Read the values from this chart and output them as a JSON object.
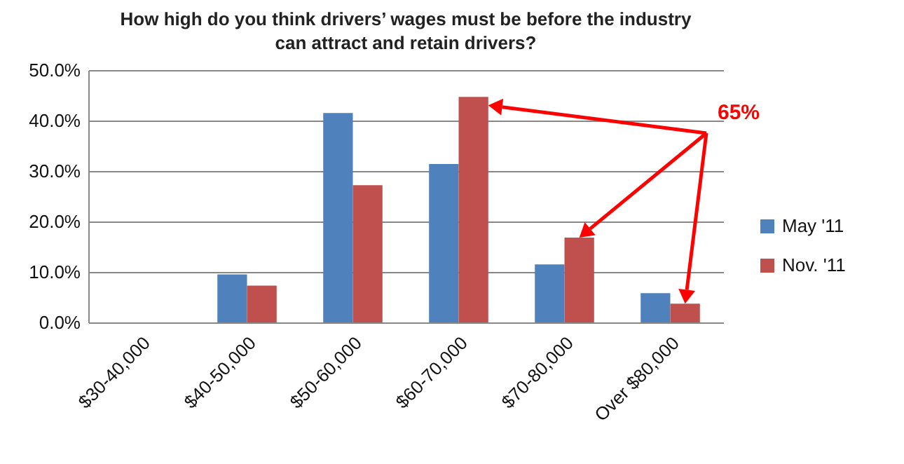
{
  "chart_data": {
    "type": "bar",
    "title": "How high do you think drivers’ wages must be before the industry can attract and retain drivers?",
    "categories": [
      "$30-40,000",
      "$40-50,000",
      "$50-60,000",
      "$60-70,000",
      "$70-80,000",
      "Over $80,000"
    ],
    "series": [
      {
        "name": "May '11",
        "color": "#4f81bd",
        "values": [
          0,
          9.5,
          41.5,
          31.4,
          11.5,
          5.8
        ]
      },
      {
        "name": "Nov. '11",
        "color": "#c0504d",
        "values": [
          0,
          7.3,
          27.2,
          44.7,
          16.8,
          3.7
        ]
      }
    ],
    "ylim": [
      0,
      50
    ],
    "yticks": [
      {
        "value": 0,
        "label": "0.0%"
      },
      {
        "value": 10,
        "label": "10.0%"
      },
      {
        "value": 20,
        "label": "20.0%"
      },
      {
        "value": 30,
        "label": "30.0%"
      },
      {
        "value": 40,
        "label": "40.0%"
      },
      {
        "value": 50,
        "label": "50.0%"
      }
    ],
    "grid": "y",
    "legend": "right",
    "annotations": [
      "65%"
    ]
  }
}
